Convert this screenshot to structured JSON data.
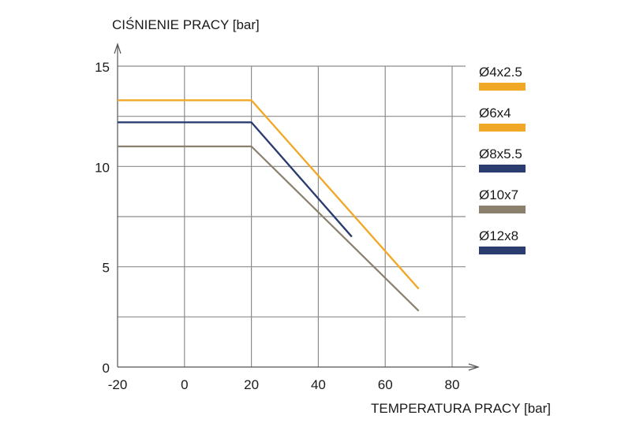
{
  "chart_data": {
    "type": "line",
    "ylabel": "CIŚNIENIE PRACY [bar]",
    "xlabel": "TEMPERATURA PRACY [bar]",
    "xlim": [
      -20,
      80
    ],
    "ylim": [
      0,
      15
    ],
    "xticks": [
      -20,
      0,
      20,
      40,
      60,
      80
    ],
    "yticks": [
      0,
      5,
      10,
      15
    ],
    "xgrid": [
      -20,
      0,
      20,
      40,
      60,
      80
    ],
    "ygrid": [
      0,
      2.5,
      5,
      7.5,
      10,
      12.5,
      15
    ],
    "grid": true,
    "legend_position": "right",
    "series": [
      {
        "name": "Ø4x2.5",
        "color": "#F2A827",
        "x": [
          -20,
          20,
          70
        ],
        "y": [
          13.3,
          13.3,
          3.9
        ]
      },
      {
        "name": "Ø6x4",
        "color": "#F2A827",
        "x": [
          -20,
          20,
          70
        ],
        "y": [
          13.3,
          13.3,
          3.9
        ]
      },
      {
        "name": "Ø8x5.5",
        "color": "#2B3C70",
        "x": [
          -20,
          20,
          50
        ],
        "y": [
          12.2,
          12.2,
          6.5
        ]
      },
      {
        "name": "Ø10x7",
        "color": "#8A806D",
        "x": [
          -20,
          20,
          70
        ],
        "y": [
          11.0,
          11.0,
          2.8
        ]
      },
      {
        "name": "Ø12x8",
        "color": "#2B3C70",
        "x": [
          -20,
          20,
          50
        ],
        "y": [
          12.2,
          12.2,
          6.5
        ]
      }
    ]
  }
}
